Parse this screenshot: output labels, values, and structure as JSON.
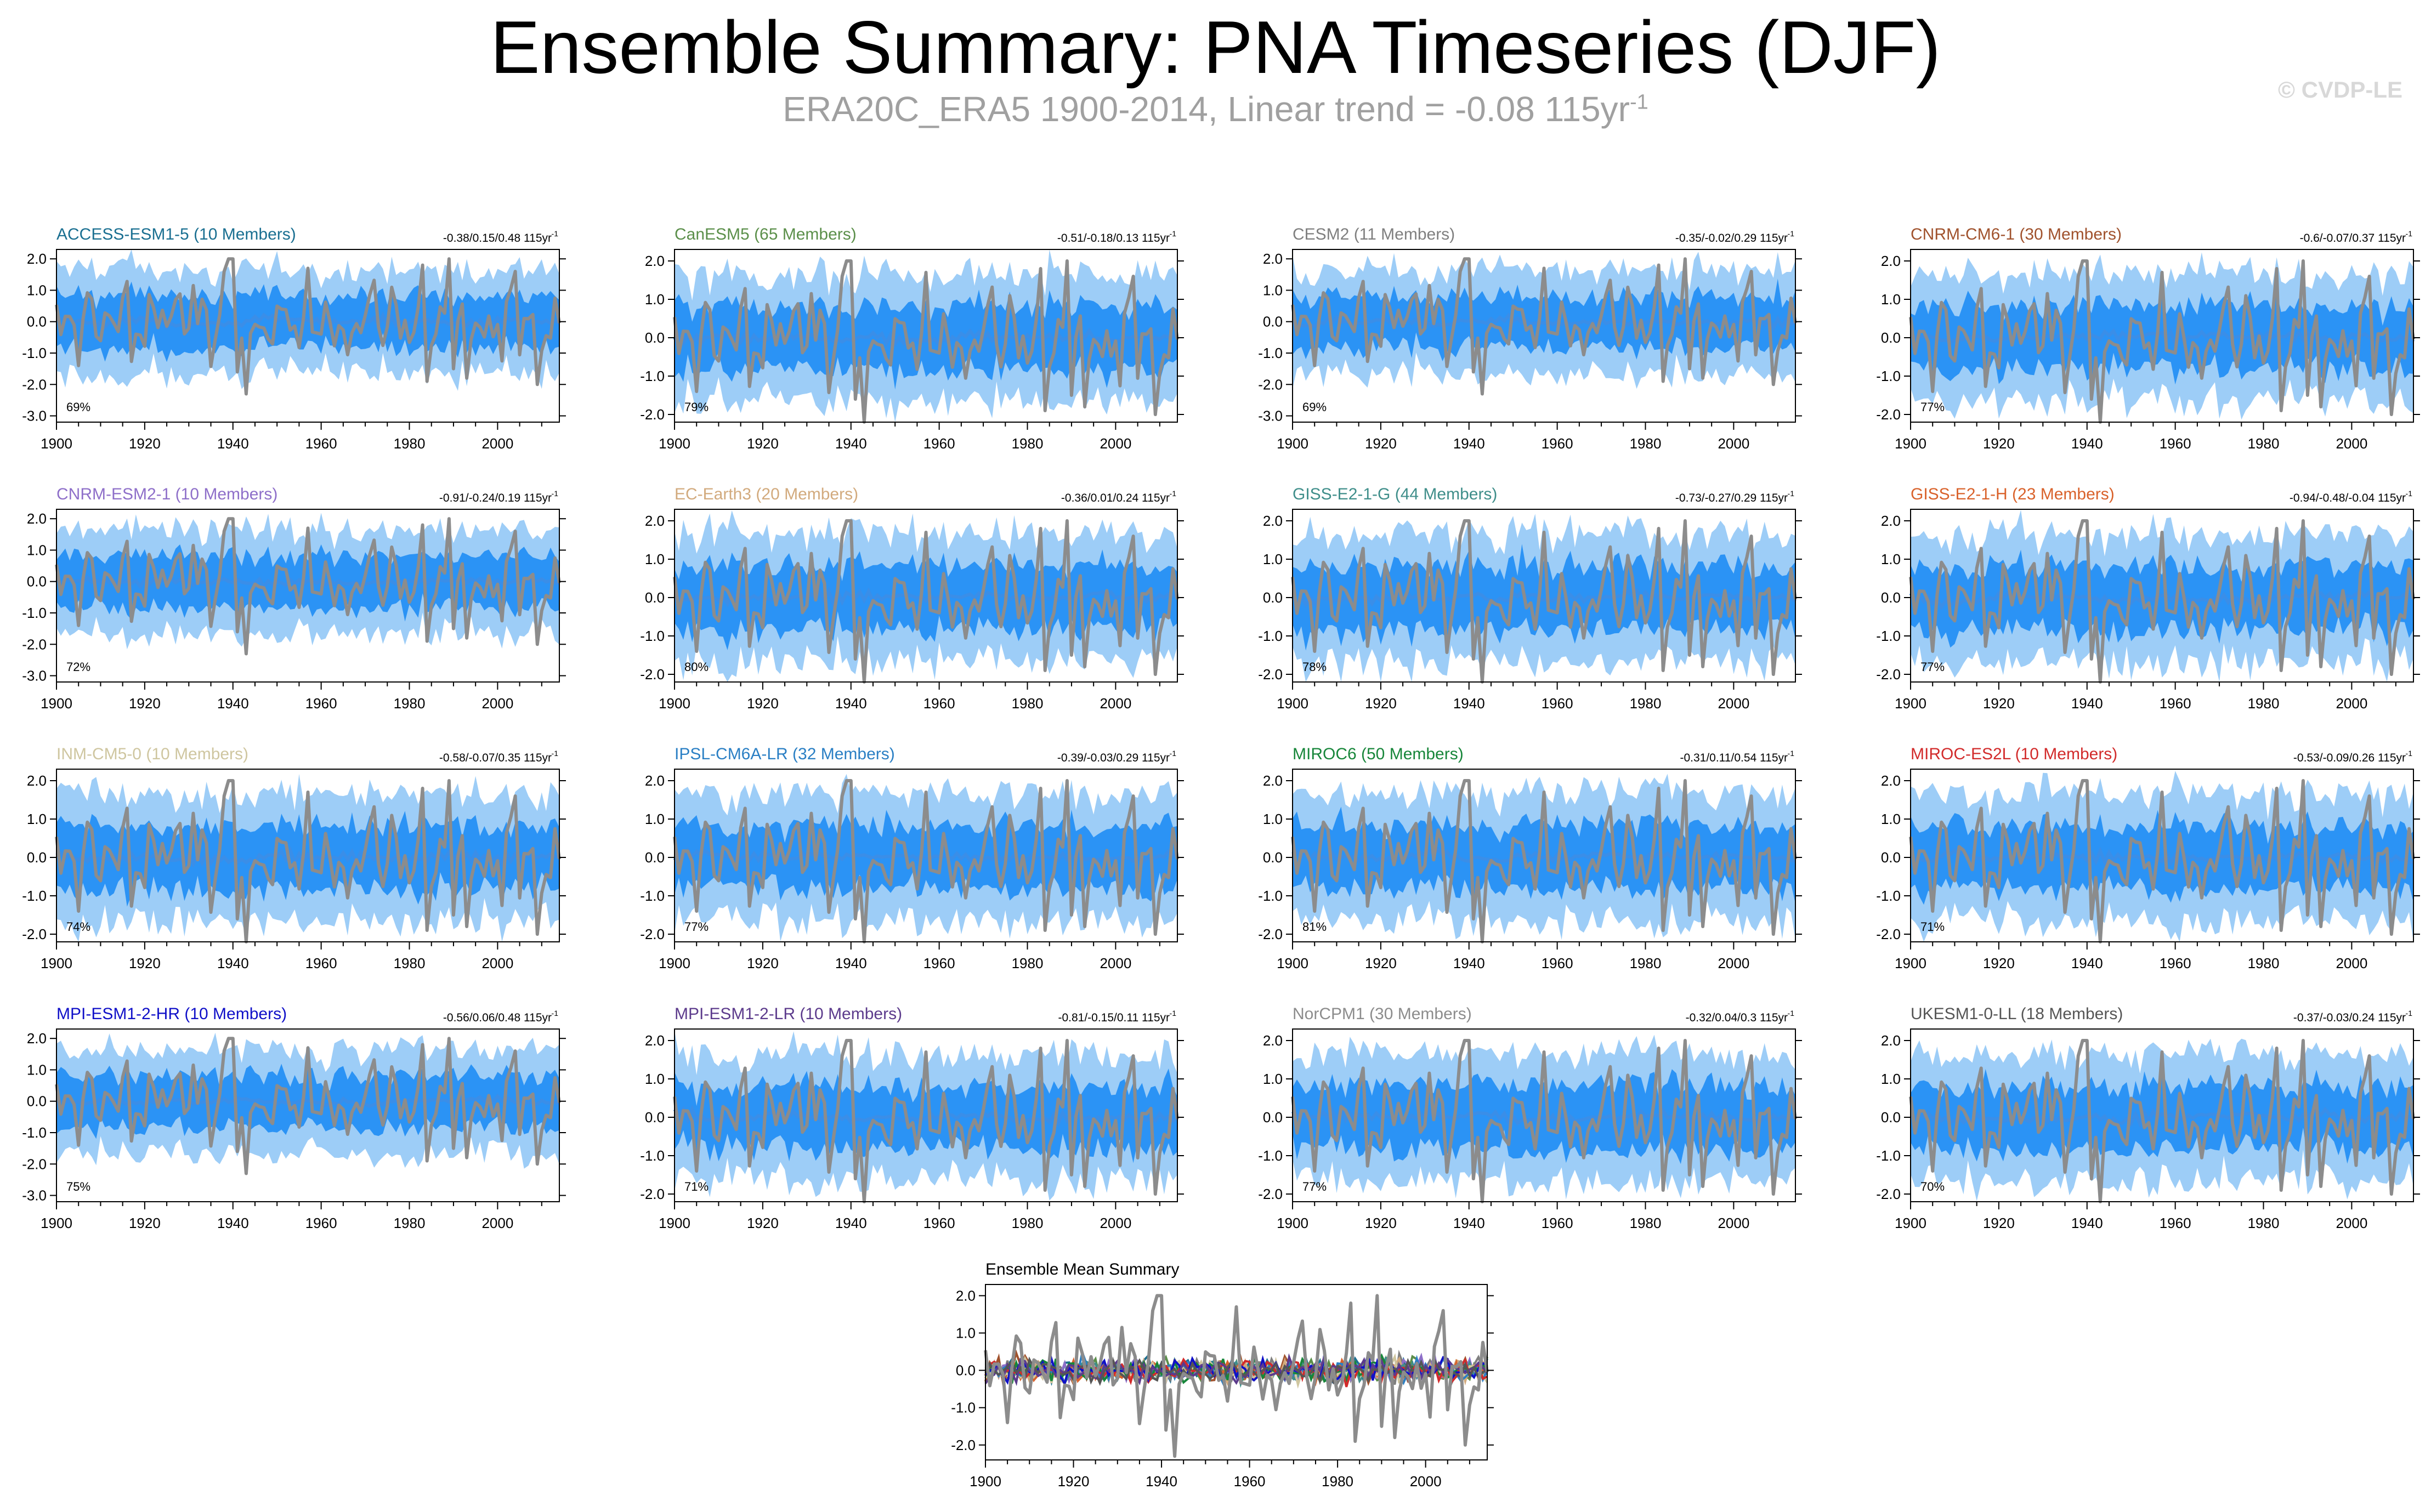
{
  "header": {
    "title": "Ensemble Summary: PNA Timeseries (DJF)",
    "subtitle": "ERA20C_ERA5 1900-2014, Linear trend = -0.08 115yr",
    "subtitle_sup": "-1",
    "credit": "© CVDP-LE"
  },
  "colors": {
    "observed_line": "#8c8c8c",
    "ensemble_mean": "#3a8ee8",
    "inner_band": "#2b93f5",
    "outer_band": "#9dcdf7",
    "axis": "#000000"
  },
  "chart_data": [
    {
      "type": "area",
      "model": "ACCESS-ESM1-5 (10 Members)",
      "title_color": "#1a6f91",
      "trend_label": "-0.38/0.15/0.48 115yr",
      "trend_sup": "-1",
      "percent": "69%",
      "xlim": [
        1900,
        2014
      ],
      "ylim": [
        -3.2,
        2.3
      ],
      "yticks": [
        2.0,
        1.0,
        0.0,
        -1.0,
        -2.0,
        -3.0
      ],
      "xticks": [
        1900,
        1920,
        1940,
        1960,
        1980,
        2000
      ]
    },
    {
      "type": "area",
      "model": "CanESM5 (65 Members)",
      "title_color": "#5b8f4a",
      "trend_label": "-0.51/-0.18/0.13 115yr",
      "trend_sup": "-1",
      "percent": "79%",
      "xlim": [
        1900,
        2014
      ],
      "ylim": [
        -2.2,
        2.3
      ],
      "yticks": [
        2.0,
        1.0,
        0.0,
        -1.0,
        -2.0
      ],
      "xticks": [
        1900,
        1920,
        1940,
        1960,
        1980,
        2000
      ]
    },
    {
      "type": "area",
      "model": "CESM2 (11 Members)",
      "title_color": "#7f7f7f",
      "trend_label": "-0.35/-0.02/0.29 115yr",
      "trend_sup": "-1",
      "percent": "69%",
      "xlim": [
        1900,
        2014
      ],
      "ylim": [
        -3.2,
        2.3
      ],
      "yticks": [
        2.0,
        1.0,
        0.0,
        -1.0,
        -2.0,
        -3.0
      ],
      "xticks": [
        1900,
        1920,
        1940,
        1960,
        1980,
        2000
      ]
    },
    {
      "type": "area",
      "model": "CNRM-CM6-1 (30 Members)",
      "title_color": "#a0522d",
      "trend_label": "-0.6/-0.07/0.37 115yr",
      "trend_sup": "-1",
      "percent": "77%",
      "xlim": [
        1900,
        2014
      ],
      "ylim": [
        -2.2,
        2.3
      ],
      "yticks": [
        2.0,
        1.0,
        0.0,
        -1.0,
        -2.0
      ],
      "xticks": [
        1900,
        1920,
        1940,
        1960,
        1980,
        2000
      ]
    },
    {
      "type": "area",
      "model": "CNRM-ESM2-1 (10 Members)",
      "title_color": "#8e6fc9",
      "trend_label": "-0.91/-0.24/0.19 115yr",
      "trend_sup": "-1",
      "percent": "72%",
      "xlim": [
        1900,
        2014
      ],
      "ylim": [
        -3.2,
        2.3
      ],
      "yticks": [
        2.0,
        1.0,
        0.0,
        -1.0,
        -2.0,
        -3.0
      ],
      "xticks": [
        1900,
        1920,
        1940,
        1960,
        1980,
        2000
      ]
    },
    {
      "type": "area",
      "model": "EC-Earth3 (20 Members)",
      "title_color": "#d2aa7d",
      "trend_label": "-0.36/0.01/0.24 115yr",
      "trend_sup": "-1",
      "percent": "80%",
      "xlim": [
        1900,
        2014
      ],
      "ylim": [
        -2.2,
        2.3
      ],
      "yticks": [
        2.0,
        1.0,
        0.0,
        -1.0,
        -2.0
      ],
      "xticks": [
        1900,
        1920,
        1940,
        1960,
        1980,
        2000
      ]
    },
    {
      "type": "area",
      "model": "GISS-E2-1-G (44 Members)",
      "title_color": "#3f8e8a",
      "trend_label": "-0.73/-0.27/0.29 115yr",
      "trend_sup": "-1",
      "percent": "78%",
      "xlim": [
        1900,
        2014
      ],
      "ylim": [
        -2.2,
        2.3
      ],
      "yticks": [
        2.0,
        1.0,
        0.0,
        -1.0,
        -2.0
      ],
      "xticks": [
        1900,
        1920,
        1940,
        1960,
        1980,
        2000
      ]
    },
    {
      "type": "area",
      "model": "GISS-E2-1-H (23 Members)",
      "title_color": "#d9622b",
      "trend_label": "-0.94/-0.48/-0.04 115yr",
      "trend_sup": "-1",
      "percent": "77%",
      "xlim": [
        1900,
        2014
      ],
      "ylim": [
        -2.2,
        2.3
      ],
      "yticks": [
        2.0,
        1.0,
        0.0,
        -1.0,
        -2.0
      ],
      "xticks": [
        1900,
        1920,
        1940,
        1960,
        1980,
        2000
      ]
    },
    {
      "type": "area",
      "model": "INM-CM5-0 (10 Members)",
      "title_color": "#cfc6a0",
      "trend_label": "-0.58/-0.07/0.35 115yr",
      "trend_sup": "-1",
      "percent": "74%",
      "xlim": [
        1900,
        2014
      ],
      "ylim": [
        -2.2,
        2.3
      ],
      "yticks": [
        2.0,
        1.0,
        0.0,
        -1.0,
        -2.0
      ],
      "xticks": [
        1900,
        1920,
        1940,
        1960,
        1980,
        2000
      ]
    },
    {
      "type": "area",
      "model": "IPSL-CM6A-LR (32 Members)",
      "title_color": "#2a7fc4",
      "trend_label": "-0.39/-0.03/0.29 115yr",
      "trend_sup": "-1",
      "percent": "77%",
      "xlim": [
        1900,
        2014
      ],
      "ylim": [
        -2.2,
        2.3
      ],
      "yticks": [
        2.0,
        1.0,
        0.0,
        -1.0,
        -2.0
      ],
      "xticks": [
        1900,
        1920,
        1940,
        1960,
        1980,
        2000
      ]
    },
    {
      "type": "area",
      "model": "MIROC6 (50 Members)",
      "title_color": "#17863a",
      "trend_label": "-0.31/0.11/0.54 115yr",
      "trend_sup": "-1",
      "percent": "81%",
      "xlim": [
        1900,
        2014
      ],
      "ylim": [
        -2.2,
        2.3
      ],
      "yticks": [
        2.0,
        1.0,
        0.0,
        -1.0,
        -2.0
      ],
      "xticks": [
        1900,
        1920,
        1940,
        1960,
        1980,
        2000
      ]
    },
    {
      "type": "area",
      "model": "MIROC-ES2L (10 Members)",
      "title_color": "#d22b2b",
      "trend_label": "-0.53/-0.09/0.26 115yr",
      "trend_sup": "-1",
      "percent": "71%",
      "xlim": [
        1900,
        2014
      ],
      "ylim": [
        -2.2,
        2.3
      ],
      "yticks": [
        2.0,
        1.0,
        0.0,
        -1.0,
        -2.0
      ],
      "xticks": [
        1900,
        1920,
        1940,
        1960,
        1980,
        2000
      ]
    },
    {
      "type": "area",
      "model": "MPI-ESM1-2-HR (10 Members)",
      "title_color": "#1010c8",
      "trend_label": "-0.56/0.06/0.48 115yr",
      "trend_sup": "-1",
      "percent": "75%",
      "xlim": [
        1900,
        2014
      ],
      "ylim": [
        -3.2,
        2.3
      ],
      "yticks": [
        2.0,
        1.0,
        0.0,
        -1.0,
        -2.0,
        -3.0
      ],
      "xticks": [
        1900,
        1920,
        1940,
        1960,
        1980,
        2000
      ]
    },
    {
      "type": "area",
      "model": "MPI-ESM1-2-LR (10 Members)",
      "title_color": "#5c3b8c",
      "trend_label": "-0.81/-0.15/0.11 115yr",
      "trend_sup": "-1",
      "percent": "71%",
      "xlim": [
        1900,
        2014
      ],
      "ylim": [
        -2.2,
        2.3
      ],
      "yticks": [
        2.0,
        1.0,
        0.0,
        -1.0,
        -2.0
      ],
      "xticks": [
        1900,
        1920,
        1940,
        1960,
        1980,
        2000
      ]
    },
    {
      "type": "area",
      "model": "NorCPM1 (30 Members)",
      "title_color": "#8c8c8c",
      "trend_label": "-0.32/0.04/0.3 115yr",
      "trend_sup": "-1",
      "percent": "77%",
      "xlim": [
        1900,
        2014
      ],
      "ylim": [
        -2.2,
        2.3
      ],
      "yticks": [
        2.0,
        1.0,
        0.0,
        -1.0,
        -2.0
      ],
      "xticks": [
        1900,
        1920,
        1940,
        1960,
        1980,
        2000
      ]
    },
    {
      "type": "area",
      "model": "UKESM1-0-LL (18 Members)",
      "title_color": "#555555",
      "trend_label": "-0.37/-0.03/0.24 115yr",
      "trend_sup": "-1",
      "percent": "70%",
      "xlim": [
        1900,
        2014
      ],
      "ylim": [
        -2.2,
        2.3
      ],
      "yticks": [
        2.0,
        1.0,
        0.0,
        -1.0,
        -2.0
      ],
      "xticks": [
        1900,
        1920,
        1940,
        1960,
        1980,
        2000
      ]
    },
    {
      "type": "line",
      "model": "Ensemble Mean Summary",
      "title_color": "#000000",
      "trend_label": "",
      "trend_sup": "",
      "percent": "",
      "xlim": [
        1900,
        2014
      ],
      "ylim": [
        -2.4,
        2.3
      ],
      "yticks": [
        2.0,
        1.0,
        0.0,
        -1.0,
        -2.0
      ],
      "xticks": [
        1900,
        1920,
        1940,
        1960,
        1980,
        2000
      ],
      "series_colors": [
        "#1a6f91",
        "#5b8f4a",
        "#7f7f7f",
        "#a0522d",
        "#8e6fc9",
        "#d2aa7d",
        "#3f8e8a",
        "#d9622b",
        "#cfc6a0",
        "#2a7fc4",
        "#17863a",
        "#d22b2b",
        "#1010c8",
        "#5c3b8c",
        "#555555"
      ]
    }
  ]
}
